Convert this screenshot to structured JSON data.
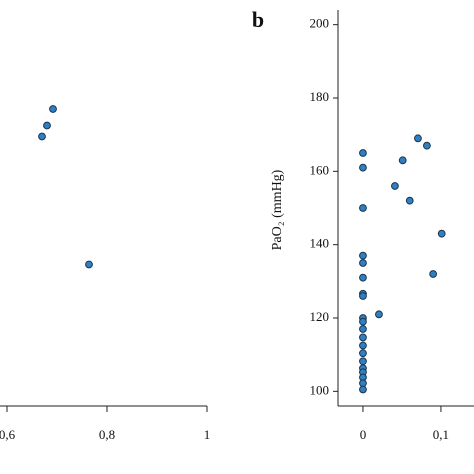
{
  "chart_data": [
    {
      "type": "scatter",
      "x": [
        0.692,
        0.68,
        0.67,
        0.764
      ],
      "values": [
        177,
        172.5,
        169.5,
        134.6
      ],
      "color": "#2f7fc1",
      "xlim": [
        0.586,
        1
      ],
      "xticks": [
        {
          "value": 0.6,
          "label": "0,6"
        },
        {
          "value": 0.8,
          "label": "0,8"
        },
        1
      ],
      "ylim": [
        96,
        204
      ]
    },
    {
      "type": "scatter",
      "panel_label": "b",
      "y_label": "PaO₂ (mmHg)",
      "x": [
        0,
        0,
        0,
        0,
        0,
        0,
        0,
        0,
        0,
        0,
        0,
        0,
        0,
        0,
        0,
        0,
        0,
        0,
        0,
        0,
        0.0205,
        0.041,
        0.051,
        0.06,
        0.0705,
        0.082,
        0.09,
        0.101
      ],
      "values": [
        165,
        161,
        150,
        137,
        135,
        131,
        126.6,
        126,
        120,
        119,
        117,
        114.7,
        112.5,
        110.4,
        108.2,
        106.3,
        105.2,
        103.8,
        102.2,
        100.5,
        121,
        156,
        163,
        152,
        169,
        167,
        132,
        143
      ],
      "color": "#2f7fc1",
      "xlim": [
        -0.032,
        0.1424
      ],
      "xticks": [
        0,
        {
          "value": 0.1,
          "label": "0,1"
        }
      ],
      "ylim": [
        96,
        204
      ],
      "yticks": [
        100,
        120,
        140,
        160,
        180,
        200
      ]
    }
  ]
}
